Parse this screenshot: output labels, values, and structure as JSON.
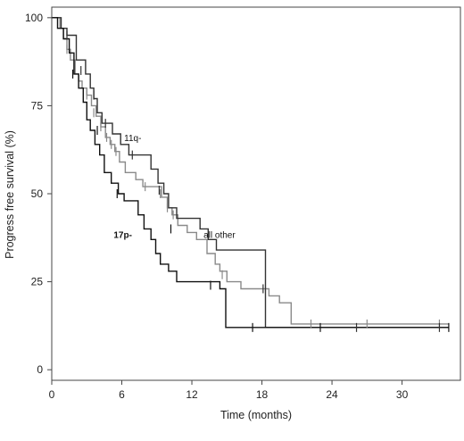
{
  "chart_data": {
    "type": "line",
    "step": true,
    "title": "",
    "xlabel": "Time (months)",
    "ylabel": "Progress free survival (%)",
    "xlim": [
      0,
      35
    ],
    "ylim": [
      -3,
      103
    ],
    "xticks": [
      0,
      6,
      12,
      18,
      24,
      30
    ],
    "yticks": [
      0,
      25,
      50,
      75,
      100
    ],
    "grid": false,
    "legend": "none",
    "annotations": [
      {
        "text": "11q-",
        "series": "11q-",
        "at": [
          6.2,
          65
        ]
      },
      {
        "text": "17p-",
        "series": "17p-",
        "at": [
          5.3,
          37.5
        ]
      },
      {
        "text": "all other",
        "series": "all other",
        "at": [
          13.0,
          37.5
        ]
      }
    ],
    "series": [
      {
        "name": "all other",
        "color": "#8a8a8a",
        "steps": [
          [
            0,
            100
          ],
          [
            0.7,
            97
          ],
          [
            1.0,
            94
          ],
          [
            1.3,
            91
          ],
          [
            1.6,
            88
          ],
          [
            2.0,
            84
          ],
          [
            2.3,
            82
          ],
          [
            2.6,
            80
          ],
          [
            3.0,
            78
          ],
          [
            3.4,
            75
          ],
          [
            3.8,
            72
          ],
          [
            4.2,
            69
          ],
          [
            4.6,
            66
          ],
          [
            5.0,
            64
          ],
          [
            5.4,
            62
          ],
          [
            5.8,
            59
          ],
          [
            6.3,
            56
          ],
          [
            7.2,
            54
          ],
          [
            7.8,
            52
          ],
          [
            9.0,
            52
          ],
          [
            9.4,
            49
          ],
          [
            9.9,
            46
          ],
          [
            10.3,
            44
          ],
          [
            10.8,
            41
          ],
          [
            11.6,
            39
          ],
          [
            12.4,
            37
          ],
          [
            13.3,
            33
          ],
          [
            14.0,
            30
          ],
          [
            14.4,
            28
          ],
          [
            15.0,
            25
          ],
          [
            16.2,
            23
          ],
          [
            18.6,
            21
          ],
          [
            19.5,
            19
          ],
          [
            20.5,
            13
          ],
          [
            34.0,
            13
          ]
        ],
        "censored": [
          [
            1.3,
            91
          ],
          [
            3.0,
            78
          ],
          [
            3.6,
            73
          ],
          [
            4.2,
            69
          ],
          [
            4.7,
            66
          ],
          [
            5.1,
            64
          ],
          [
            5.5,
            62
          ],
          [
            8.0,
            52
          ],
          [
            9.3,
            50
          ],
          [
            9.9,
            46
          ],
          [
            10.4,
            44
          ],
          [
            14.6,
            27
          ],
          [
            22.2,
            13
          ],
          [
            27.0,
            13
          ],
          [
            33.2,
            13
          ]
        ]
      },
      {
        "name": "11q-",
        "color": "#333333",
        "steps": [
          [
            0,
            100
          ],
          [
            0.8,
            97
          ],
          [
            1.3,
            95
          ],
          [
            2.1,
            88
          ],
          [
            2.9,
            84
          ],
          [
            3.3,
            80
          ],
          [
            3.6,
            77
          ],
          [
            3.9,
            73
          ],
          [
            4.3,
            70
          ],
          [
            5.2,
            67
          ],
          [
            5.9,
            64
          ],
          [
            6.6,
            61
          ],
          [
            8.5,
            57
          ],
          [
            9.1,
            53
          ],
          [
            9.6,
            50
          ],
          [
            10.0,
            46
          ],
          [
            10.7,
            43
          ],
          [
            12.7,
            40
          ],
          [
            13.4,
            37
          ],
          [
            14.1,
            34
          ],
          [
            18.1,
            34
          ],
          [
            18.3,
            12
          ],
          [
            34.0,
            12
          ]
        ],
        "censored": [
          [
            1.3,
            95
          ],
          [
            2.5,
            85
          ],
          [
            3.6,
            78
          ],
          [
            4.6,
            70
          ],
          [
            6.9,
            61
          ],
          [
            9.2,
            51
          ],
          [
            18.1,
            23
          ],
          [
            26.1,
            12
          ],
          [
            33.2,
            12
          ]
        ]
      },
      {
        "name": "17p-",
        "color": "#111111",
        "steps": [
          [
            0,
            100
          ],
          [
            0.5,
            97
          ],
          [
            1.0,
            94
          ],
          [
            1.5,
            90
          ],
          [
            1.9,
            84
          ],
          [
            2.3,
            80
          ],
          [
            2.7,
            76
          ],
          [
            3.0,
            71
          ],
          [
            3.3,
            68
          ],
          [
            3.7,
            64
          ],
          [
            4.1,
            61
          ],
          [
            4.5,
            56
          ],
          [
            5.1,
            53
          ],
          [
            5.7,
            50
          ],
          [
            6.2,
            48
          ],
          [
            7.4,
            44
          ],
          [
            7.9,
            40
          ],
          [
            8.5,
            37
          ],
          [
            8.9,
            33
          ],
          [
            9.3,
            30
          ],
          [
            10.0,
            28
          ],
          [
            10.7,
            25
          ],
          [
            13.7,
            25
          ],
          [
            14.4,
            23
          ],
          [
            14.9,
            12
          ],
          [
            34.0,
            12
          ]
        ],
        "censored": [
          [
            1.8,
            84
          ],
          [
            3.9,
            68
          ],
          [
            5.6,
            50
          ],
          [
            10.2,
            40
          ],
          [
            13.6,
            24
          ],
          [
            17.2,
            12
          ],
          [
            23.0,
            12
          ],
          [
            34.0,
            12
          ]
        ]
      }
    ]
  }
}
